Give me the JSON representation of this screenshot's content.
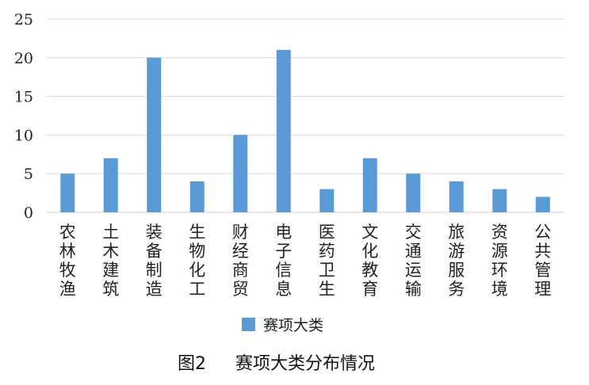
{
  "chart_data": {
    "type": "bar",
    "categories": [
      "农林牧渔",
      "土木建筑",
      "装备制造",
      "生物化工",
      "财经商贸",
      "电子信息",
      "医药卫生",
      "文化教育",
      "交通运输",
      "旅游服务",
      "资源环境",
      "公共管理"
    ],
    "series": [
      {
        "name": "赛项大类",
        "color": "#5b9bd5",
        "values": [
          5,
          7,
          20,
          4,
          10,
          21,
          3,
          7,
          5,
          4,
          3,
          2
        ]
      }
    ],
    "ylim": [
      0,
      25
    ],
    "yticks": [
      0,
      5,
      10,
      15,
      20,
      25
    ],
    "grid": true,
    "legend_position": "bottom-center"
  },
  "caption": {
    "figure_label": "图2",
    "text": "赛项大类分布情况"
  }
}
